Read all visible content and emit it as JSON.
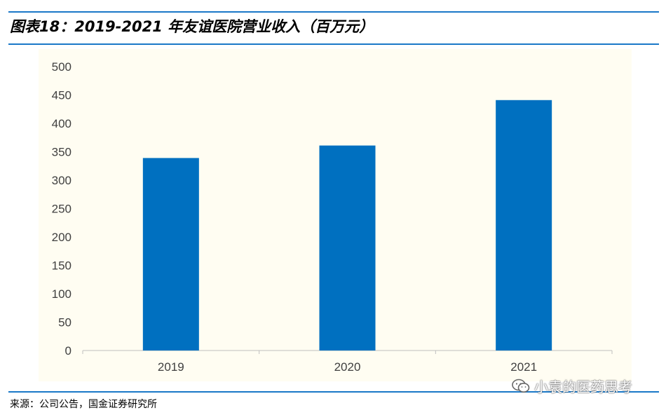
{
  "header": {
    "title": "图表18：2019-2021 年友谊医院营业收入（百万元）"
  },
  "footer": {
    "source": "来源：公司公告，国金证券研究所"
  },
  "watermark": {
    "text": "小袁的医药思考",
    "icon": "wechat-icon"
  },
  "colors": {
    "bar": "#0070c0",
    "rule": "#1a78c8",
    "plot_bg": "#fffdf2"
  },
  "chart_data": {
    "type": "bar",
    "title": "",
    "xlabel": "",
    "ylabel": "",
    "categories": [
      "2019",
      "2020",
      "2021"
    ],
    "values": [
      339,
      361,
      441
    ],
    "ylim": [
      0,
      500
    ],
    "yticks": [
      "0",
      "50",
      "100",
      "150",
      "200",
      "250",
      "300",
      "350",
      "400",
      "450",
      "500"
    ],
    "grid": false,
    "legend": "none"
  }
}
